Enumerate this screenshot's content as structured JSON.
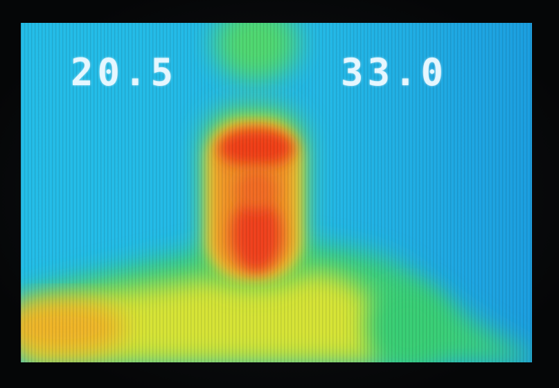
{
  "thermal_view": {
    "min_temp": "20.5",
    "max_temp": "33.0"
  },
  "colors": {
    "background": "#1fb6e6",
    "cool": "#1e9fe0",
    "mid": "#38d27a",
    "warm": "#e8e230",
    "hot": "#f04a1c"
  }
}
